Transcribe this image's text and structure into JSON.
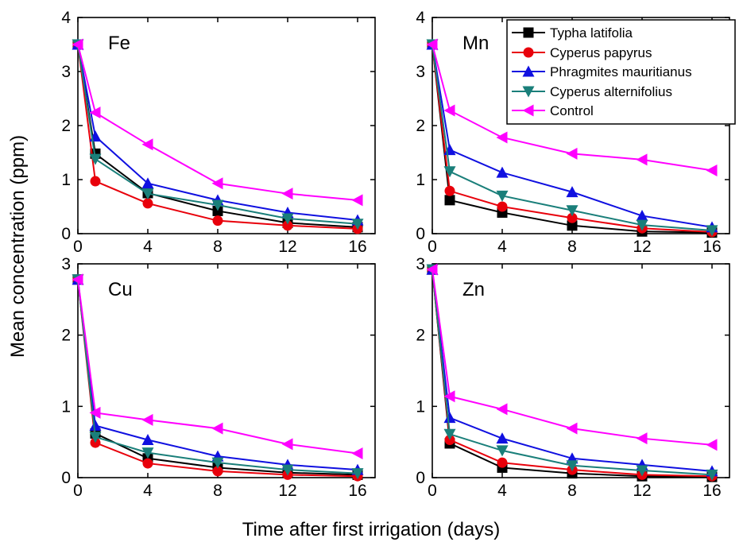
{
  "figure": {
    "xlabel": "Time after first irrigation (days)",
    "ylabel": "Mean concentration (ppm)"
  },
  "series_styles": [
    {
      "name": "Typha latifolia",
      "color": "#000000",
      "marker": "square"
    },
    {
      "name": "Cyperus papyrus",
      "color": "#e8000b",
      "marker": "circle"
    },
    {
      "name": "Phragmites mauritianus",
      "color": "#1010e0",
      "marker": "triangle-up"
    },
    {
      "name": "Cyperus alternifolius",
      "color": "#1a7f7a",
      "marker": "triangle-down"
    },
    {
      "name": "Control",
      "color": "#ff00ff",
      "marker": "triangle-left"
    }
  ],
  "legend": {
    "placement": "top-right"
  },
  "chart_data": [
    {
      "type": "line",
      "title": "Fe",
      "x": [
        0,
        1,
        4,
        8,
        12,
        16
      ],
      "xticks": [
        0,
        4,
        8,
        12,
        16
      ],
      "yticks": [
        0,
        1,
        2,
        3,
        4
      ],
      "xlim": [
        0,
        17
      ],
      "ylim": [
        0,
        4
      ],
      "series": [
        {
          "name": "Typha latifolia",
          "values": [
            3.5,
            1.48,
            0.75,
            0.42,
            0.2,
            0.12
          ]
        },
        {
          "name": "Cyperus papyrus",
          "values": [
            3.5,
            0.97,
            0.56,
            0.24,
            0.15,
            0.09
          ]
        },
        {
          "name": "Phragmites mauritianus",
          "values": [
            3.5,
            1.8,
            0.93,
            0.62,
            0.39,
            0.25
          ]
        },
        {
          "name": "Cyperus alternifolius",
          "values": [
            3.5,
            1.38,
            0.74,
            0.53,
            0.28,
            0.18
          ]
        },
        {
          "name": "Control",
          "values": [
            3.5,
            2.24,
            1.65,
            0.93,
            0.74,
            0.62
          ]
        }
      ]
    },
    {
      "type": "line",
      "title": "Mn",
      "x": [
        0,
        1,
        4,
        8,
        12,
        16
      ],
      "xticks": [
        0,
        4,
        8,
        12,
        16
      ],
      "yticks": [
        0,
        1,
        2,
        3,
        4
      ],
      "xlim": [
        0,
        17
      ],
      "ylim": [
        0,
        4
      ],
      "series": [
        {
          "name": "Typha latifolia",
          "values": [
            3.5,
            0.62,
            0.39,
            0.15,
            0.04,
            0.02
          ]
        },
        {
          "name": "Cyperus papyrus",
          "values": [
            3.5,
            0.79,
            0.5,
            0.29,
            0.1,
            0.03
          ]
        },
        {
          "name": "Phragmites mauritianus",
          "values": [
            3.5,
            1.55,
            1.13,
            0.77,
            0.33,
            0.12
          ]
        },
        {
          "name": "Cyperus alternifolius",
          "values": [
            3.5,
            1.15,
            0.7,
            0.43,
            0.16,
            0.06
          ]
        },
        {
          "name": "Control",
          "values": [
            3.5,
            2.28,
            1.78,
            1.48,
            1.37,
            1.17
          ]
        }
      ]
    },
    {
      "type": "line",
      "title": "Cu",
      "x": [
        0,
        1,
        4,
        8,
        12,
        16
      ],
      "xticks": [
        0,
        4,
        8,
        12,
        16
      ],
      "yticks": [
        0,
        1,
        2,
        3
      ],
      "xlim": [
        0,
        17
      ],
      "ylim": [
        0,
        3
      ],
      "series": [
        {
          "name": "Typha latifolia",
          "values": [
            2.78,
            0.62,
            0.27,
            0.14,
            0.07,
            0.04
          ]
        },
        {
          "name": "Cyperus papyrus",
          "values": [
            2.78,
            0.49,
            0.2,
            0.09,
            0.04,
            0.02
          ]
        },
        {
          "name": "Phragmites mauritianus",
          "values": [
            2.78,
            0.73,
            0.53,
            0.3,
            0.18,
            0.11
          ]
        },
        {
          "name": "Cyperus alternifolius",
          "values": [
            2.78,
            0.57,
            0.35,
            0.21,
            0.11,
            0.06
          ]
        },
        {
          "name": "Control",
          "values": [
            2.78,
            0.91,
            0.81,
            0.69,
            0.47,
            0.34
          ]
        }
      ]
    },
    {
      "type": "line",
      "title": "Zn",
      "x": [
        0,
        1,
        4,
        8,
        12,
        16
      ],
      "xticks": [
        0,
        4,
        8,
        12,
        16
      ],
      "yticks": [
        0,
        1,
        2,
        3
      ],
      "xlim": [
        0,
        17
      ],
      "ylim": [
        0,
        3
      ],
      "series": [
        {
          "name": "Typha latifolia",
          "values": [
            2.92,
            0.48,
            0.14,
            0.06,
            0.02,
            0.01
          ]
        },
        {
          "name": "Cyperus papyrus",
          "values": [
            2.92,
            0.53,
            0.21,
            0.11,
            0.04,
            0.02
          ]
        },
        {
          "name": "Phragmites mauritianus",
          "values": [
            2.92,
            0.84,
            0.55,
            0.27,
            0.18,
            0.09
          ]
        },
        {
          "name": "Cyperus alternifolius",
          "values": [
            2.92,
            0.61,
            0.38,
            0.17,
            0.1,
            0.04
          ]
        },
        {
          "name": "Control",
          "values": [
            2.92,
            1.14,
            0.96,
            0.69,
            0.55,
            0.46
          ]
        }
      ]
    }
  ]
}
